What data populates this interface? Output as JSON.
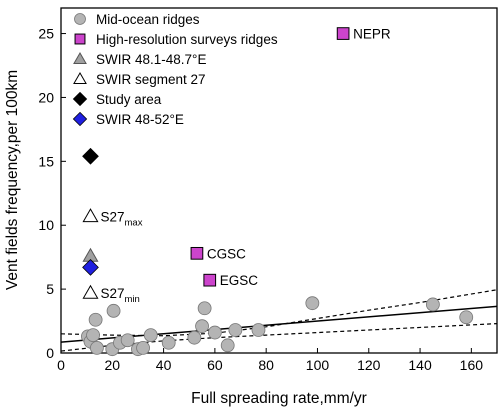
{
  "chart_data": {
    "type": "scatter",
    "xlabel": "Full spreading rate,mm/yr",
    "ylabel": "Vent fields frequency,per 100km",
    "xlim": [
      0,
      170
    ],
    "ylim": [
      0,
      27
    ],
    "x_ticks": [
      0,
      20,
      40,
      60,
      80,
      100,
      120,
      140,
      160
    ],
    "y_ticks": [
      0,
      5,
      10,
      15,
      20,
      25
    ],
    "legend_position": "top-left",
    "series": [
      {
        "name": "Mid-ocean ridges",
        "marker": "circle",
        "color": "#b4b4b4",
        "points": [
          [
            10.5,
            1.3
          ],
          [
            11.5,
            0.9
          ],
          [
            12.5,
            1.4
          ],
          [
            13.5,
            2.6
          ],
          [
            14,
            0.4
          ],
          [
            20,
            0.3
          ],
          [
            20.5,
            3.3
          ],
          [
            23,
            0.8
          ],
          [
            26,
            1.0
          ],
          [
            30,
            0.3
          ],
          [
            32,
            0.4
          ],
          [
            35,
            1.4
          ],
          [
            42,
            0.8
          ],
          [
            52,
            1.2
          ],
          [
            55,
            2.1
          ],
          [
            56,
            3.5
          ],
          [
            60,
            1.6
          ],
          [
            65,
            0.6
          ],
          [
            68,
            1.8
          ],
          [
            77,
            1.8
          ],
          [
            98,
            3.9
          ],
          [
            145,
            3.8
          ],
          [
            158,
            2.8
          ]
        ]
      },
      {
        "name": "High-resolution surveys ridges",
        "marker": "square",
        "color": "#cc44cc",
        "points": [
          [
            110,
            25.0
          ],
          [
            53,
            7.8
          ],
          [
            58,
            5.7
          ]
        ],
        "labels": [
          "NEPR",
          "CGSC",
          "EGSC"
        ]
      },
      {
        "name": "SWIR 48.1-48.7°E",
        "marker": "triangle",
        "color": "#a0a0a0",
        "points": [
          [
            11.5,
            7.6
          ]
        ]
      },
      {
        "name": "SWIR segment 27",
        "marker": "triangle-open",
        "color": "#ffffff",
        "points": [
          [
            11.5,
            10.7
          ],
          [
            11.5,
            4.7
          ]
        ],
        "labels": [
          {
            "main": "S27",
            "sub": "max"
          },
          {
            "main": "S27",
            "sub": "min"
          }
        ]
      },
      {
        "name": "Study area",
        "marker": "diamond",
        "color": "#000000",
        "points": [
          [
            11.5,
            15.4
          ]
        ]
      },
      {
        "name": "SWIR 48-52°E",
        "marker": "diamond",
        "color": "#2020e0",
        "points": [
          [
            11.5,
            6.7
          ]
        ]
      }
    ],
    "fit_line": {
      "x": [
        0,
        170
      ],
      "y": [
        0.85,
        3.65
      ]
    },
    "confidence_upper": {
      "x": [
        0,
        20,
        40,
        60,
        80,
        100,
        120,
        140,
        170
      ],
      "y": [
        1.5,
        1.4,
        1.35,
        1.55,
        2.05,
        2.7,
        3.35,
        3.95,
        4.95
      ]
    },
    "confidence_lower": {
      "x": [
        0,
        20,
        40,
        60,
        80,
        100,
        120,
        140,
        170
      ],
      "y": [
        0.15,
        0.6,
        0.95,
        1.2,
        1.4,
        1.6,
        1.8,
        2.0,
        2.3
      ]
    }
  }
}
